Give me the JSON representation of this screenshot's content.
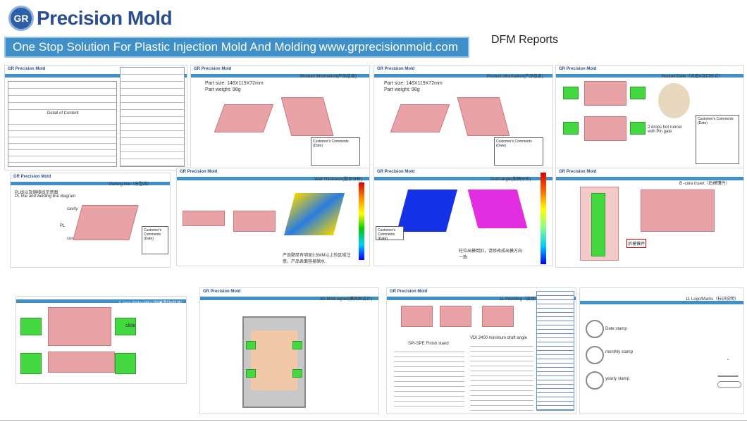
{
  "header": {
    "logo_mark": "GR",
    "logo_text": "Precision Mold",
    "banner_slogan": "One Stop Solution For Plastic Injection Mold And Molding",
    "banner_url": "www.grprecisionmold.com",
    "report_title": "DFM Reports"
  },
  "thumbs": {
    "t1": {
      "caption": "Detail of Content"
    },
    "t2": {
      "part_size": "Part size: 146X119X72mm",
      "part_weight": "Part weight: 98g",
      "comments": "Customer's Comments (Date)",
      "title": "Product information(产品信息)"
    },
    "t3": {
      "part_size": "Part size: 146X119X72mm",
      "part_weight": "Part weight: 98g",
      "comments": "Customer's Comments (Date)",
      "title": "Product information(产品信息)"
    },
    "t4": {
      "title": "Runner/Gate（流道&浇口形式）",
      "note": "2 drops hot runner with Pin gate",
      "comments": "Customer's Comments (Date)"
    },
    "t5": {
      "title": "Parting line（分型线）",
      "note1": "PL线以及熔接线示意图",
      "note2": "PL line and welding line diagram",
      "cavity": "cavity",
      "core": "core",
      "pl": "PL",
      "comments": "Customer's Comments (Date)"
    },
    "t6": {
      "title": "Wall Thickness(壁厚分析)",
      "note": "产品壁厚有明显3.5MM以上的区域注意，产品表面容易缩水"
    },
    "t7": {
      "title": "Draft angle(脱模分析)",
      "note": "柱位出模倒扣，请修改成出模方向一致",
      "comments": "Customer's Comments (Date)"
    },
    "t8": {
      "title": "B -core insert（后模镶件）",
      "note": "后模镶件"
    },
    "t9": {
      "title": "A-core Slides/lifter(前模滑块/斜顶)",
      "slide": "slide"
    },
    "t10": {
      "title": "3D Mold layout(模具图设计)"
    },
    "t11": {
      "title": "11 Finishing（皮纹）",
      "spi_title": "SPI-SPE Finish stand",
      "vdi_title": "VDI 3400 minimum draft angle"
    },
    "t12": {
      "title": "11 Logo/Marks（标识说明）",
      "date_stamp": "Date stamp",
      "monthly_stamp": "monthly stamp",
      "yearly_stamp": "yearly stamp"
    }
  },
  "colors": {
    "brand": "#2b4f8e",
    "banner": "#3f8fc8",
    "part": "#e9a3a6",
    "slide": "#43d83f"
  }
}
